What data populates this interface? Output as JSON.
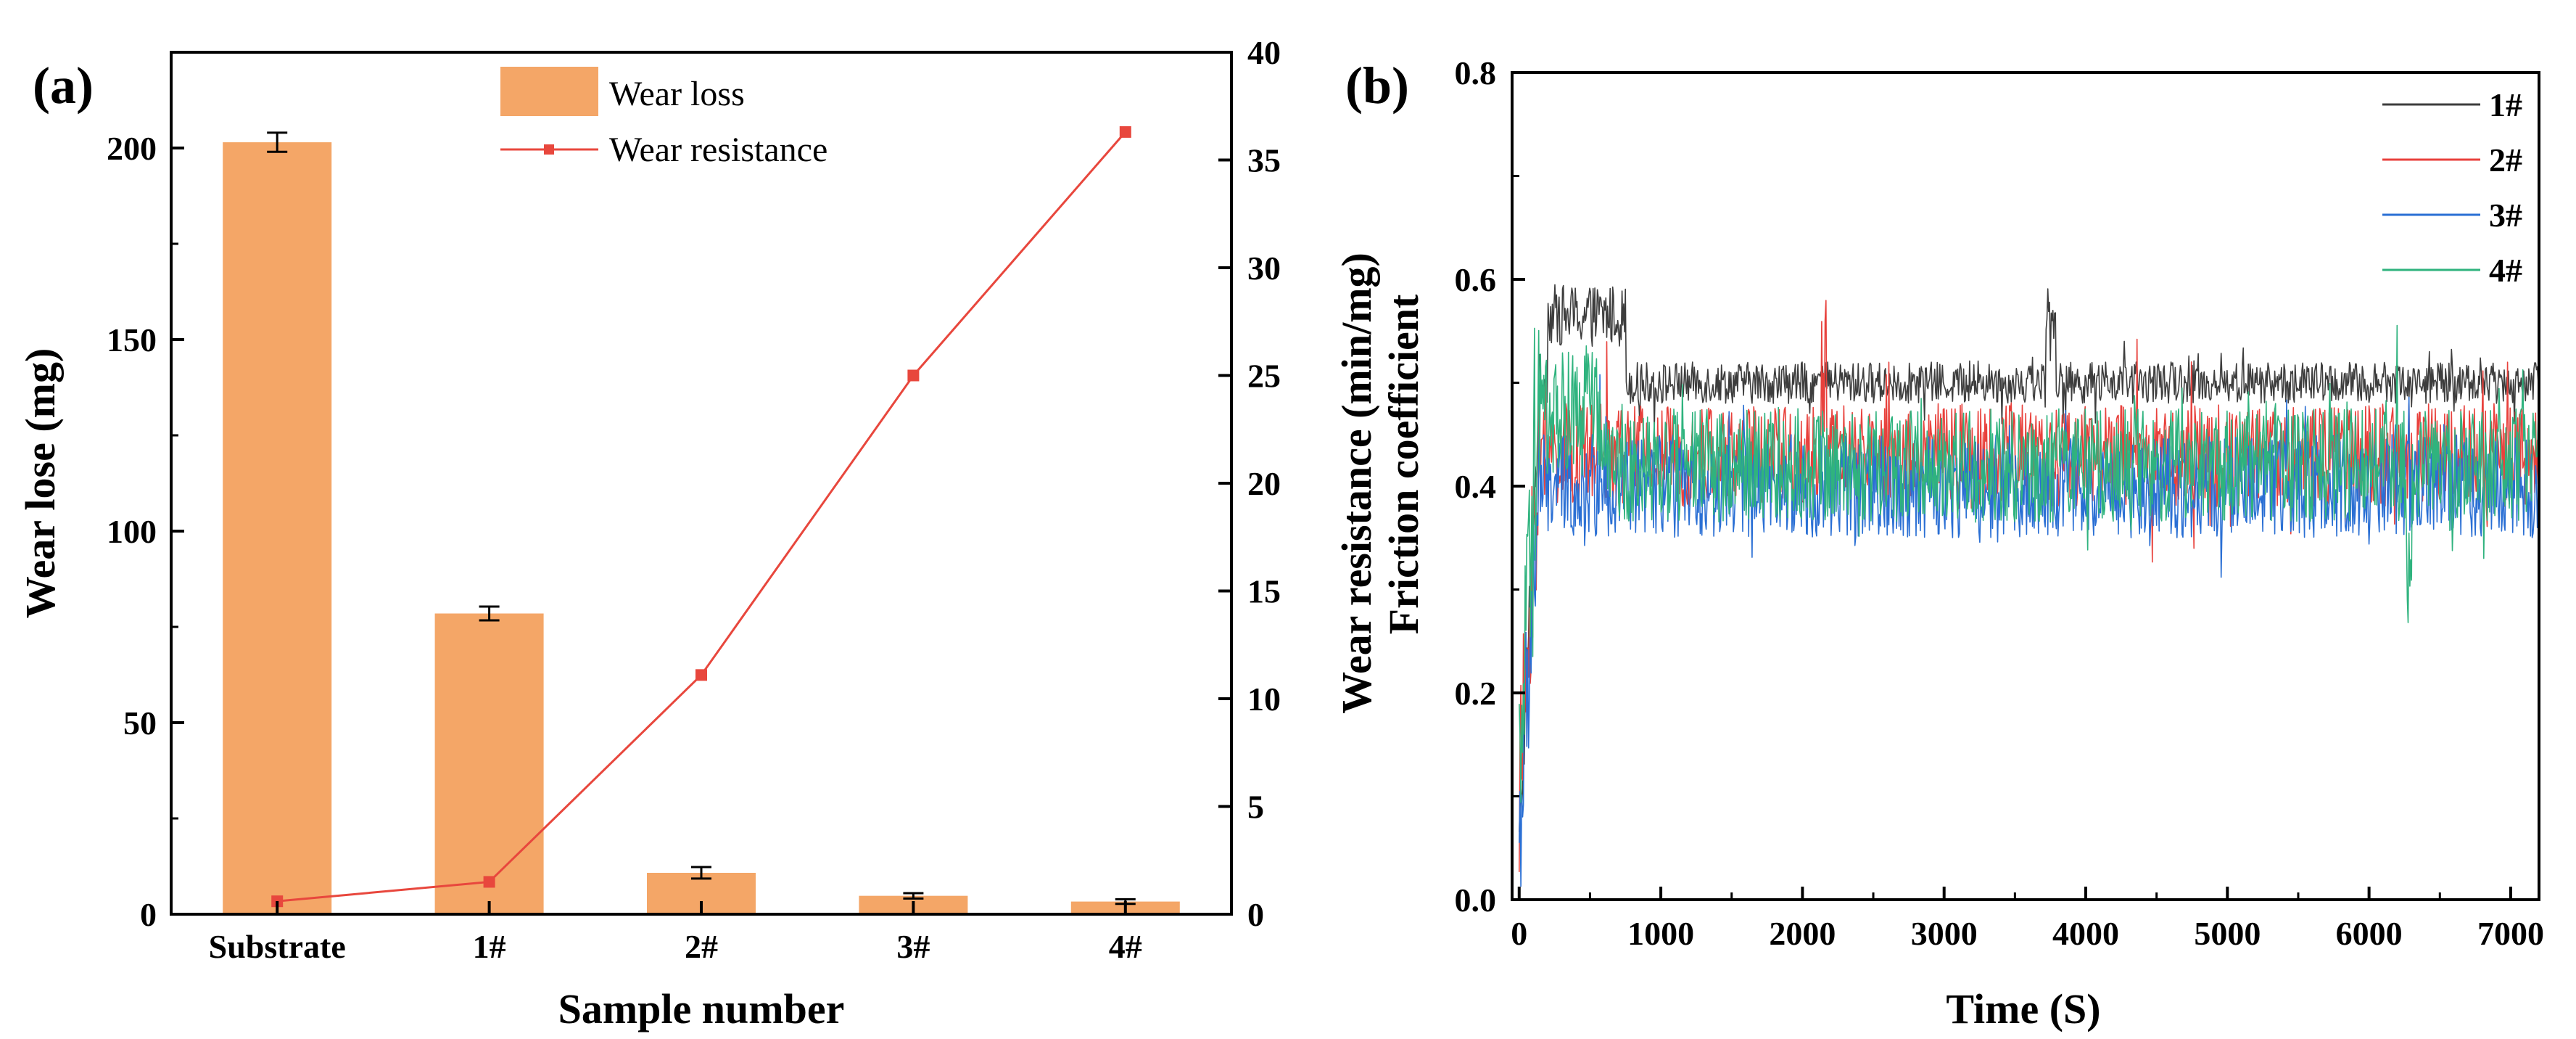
{
  "chart_data": [
    {
      "panel_label": "(a)",
      "type": "bar",
      "xlabel": "Sample number",
      "ylabel": "Wear lose (mg)",
      "y2label": "Wear resistance (min/mg)",
      "ylim": [
        0,
        225
      ],
      "y2lim": [
        0,
        40
      ],
      "categories": [
        "Substrate",
        "1#",
        "2#",
        "3#",
        "4#"
      ],
      "yticks": [
        0,
        50,
        100,
        150,
        200
      ],
      "y2ticks": [
        0,
        5,
        10,
        15,
        20,
        25,
        30,
        35,
        40
      ],
      "colors": {
        "bar": "#f4a667",
        "line": "#e8473d"
      },
      "series": [
        {
          "name": "Wear loss",
          "kind": "bar",
          "axis": "left",
          "values": [
            201.5,
            78.5,
            10.8,
            4.8,
            3.3
          ],
          "errors": [
            2.5,
            1.8,
            1.5,
            0.7,
            0.6
          ]
        },
        {
          "name": "Wear resistance",
          "kind": "line",
          "axis": "right",
          "values": [
            0.6,
            1.5,
            11.1,
            25.0,
            36.3
          ]
        }
      ],
      "legend": [
        "Wear loss",
        "Wear resistance"
      ],
      "legend_position": "top-center"
    },
    {
      "panel_label": "(b)",
      "type": "line",
      "xlabel": "Time (S)",
      "ylabel": "Friction coefficient",
      "xlim": [
        -50,
        7200
      ],
      "ylim": [
        0,
        0.8
      ],
      "xticks": [
        0,
        1000,
        2000,
        3000,
        4000,
        5000,
        6000,
        7000
      ],
      "yticks": [
        "0.0",
        "0.2",
        "0.4",
        "0.6",
        "0.8"
      ],
      "legend": [
        "1#",
        "2#",
        "3#",
        "4#"
      ],
      "legend_position": "top-right",
      "series": [
        {
          "name": "1#",
          "color": "#3d3d3d",
          "steady_mean": 0.5,
          "amplitude": 0.02,
          "notes": "rises to ~0.57 between 200 and 750 s, spike to 0.6 near 3750 s"
        },
        {
          "name": "2#",
          "color": "#e8413c",
          "steady_mean": 0.43,
          "amplitude": 0.05,
          "notes": "peak ~0.58 near 2150 s"
        },
        {
          "name": "3#",
          "color": "#2a6fd4",
          "steady_mean": 0.4,
          "amplitude": 0.05,
          "notes": "run-in from ~0.04 at start"
        },
        {
          "name": "4#",
          "color": "#2fb37e",
          "steady_mean": 0.42,
          "amplitude": 0.055,
          "notes": "peak ~0.59 near 100 s, min ~0.26 near 6280 s"
        }
      ]
    }
  ]
}
